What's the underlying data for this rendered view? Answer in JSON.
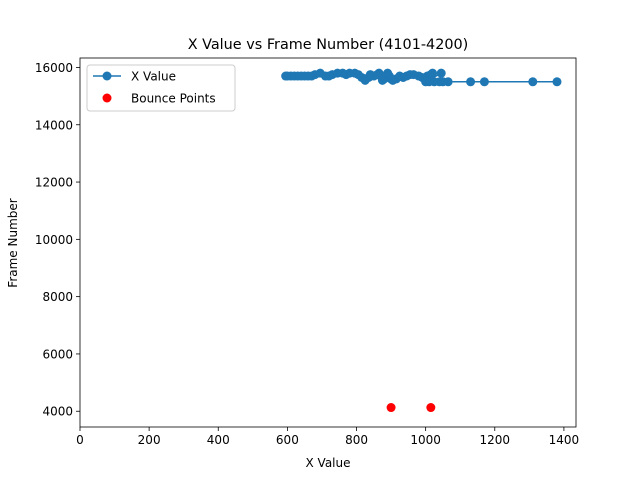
{
  "chart_data": {
    "type": "scatter",
    "title": "X Value vs Frame Number (4101-4200)",
    "xlabel": "X Value",
    "ylabel": "Frame Number",
    "xlim": [
      0,
      1435
    ],
    "ylim": [
      3450,
      16330
    ],
    "xticks": [
      0,
      200,
      400,
      600,
      800,
      1000,
      1200,
      1400
    ],
    "yticks": [
      4000,
      6000,
      8000,
      10000,
      12000,
      14000,
      16000
    ],
    "grid": false,
    "legend": {
      "position": "upper-left",
      "entries": [
        "X Value",
        "Bounce Points"
      ]
    },
    "series": [
      {
        "name": "X Value",
        "style": "line-marker",
        "color": "#1f77b4",
        "points": [
          [
            1380,
            15500
          ],
          [
            1310,
            15500
          ],
          [
            1170,
            15500
          ],
          [
            1130,
            15500
          ],
          [
            1065,
            15500
          ],
          [
            1050,
            15500
          ],
          [
            1040,
            15500
          ],
          [
            1025,
            15500
          ],
          [
            1010,
            15500
          ],
          [
            1000,
            15500
          ],
          [
            1045,
            15800
          ],
          [
            1020,
            15800
          ],
          [
            1015,
            15750
          ],
          [
            1005,
            15700
          ],
          [
            1000,
            15600
          ],
          [
            990,
            15650
          ],
          [
            980,
            15700
          ],
          [
            965,
            15750
          ],
          [
            955,
            15750
          ],
          [
            945,
            15700
          ],
          [
            935,
            15650
          ],
          [
            925,
            15700
          ],
          [
            915,
            15600
          ],
          [
            905,
            15550
          ],
          [
            900,
            15600
          ],
          [
            895,
            15700
          ],
          [
            890,
            15800
          ],
          [
            885,
            15650
          ],
          [
            880,
            15600
          ],
          [
            875,
            15550
          ],
          [
            870,
            15700
          ],
          [
            865,
            15800
          ],
          [
            860,
            15750
          ],
          [
            850,
            15700
          ],
          [
            840,
            15750
          ],
          [
            835,
            15650
          ],
          [
            825,
            15550
          ],
          [
            815,
            15650
          ],
          [
            805,
            15750
          ],
          [
            795,
            15800
          ],
          [
            780,
            15800
          ],
          [
            770,
            15750
          ],
          [
            760,
            15800
          ],
          [
            745,
            15800
          ],
          [
            730,
            15750
          ],
          [
            720,
            15700
          ],
          [
            710,
            15700
          ],
          [
            695,
            15800
          ],
          [
            680,
            15750
          ],
          [
            670,
            15700
          ],
          [
            660,
            15700
          ],
          [
            650,
            15700
          ],
          [
            640,
            15700
          ],
          [
            630,
            15700
          ],
          [
            620,
            15700
          ],
          [
            610,
            15700
          ],
          [
            600,
            15700
          ],
          [
            595,
            15700
          ]
        ]
      },
      {
        "name": "Bounce Points",
        "style": "marker",
        "color": "#ff0000",
        "points": [
          [
            900,
            4130
          ],
          [
            1015,
            4130
          ]
        ]
      }
    ]
  }
}
